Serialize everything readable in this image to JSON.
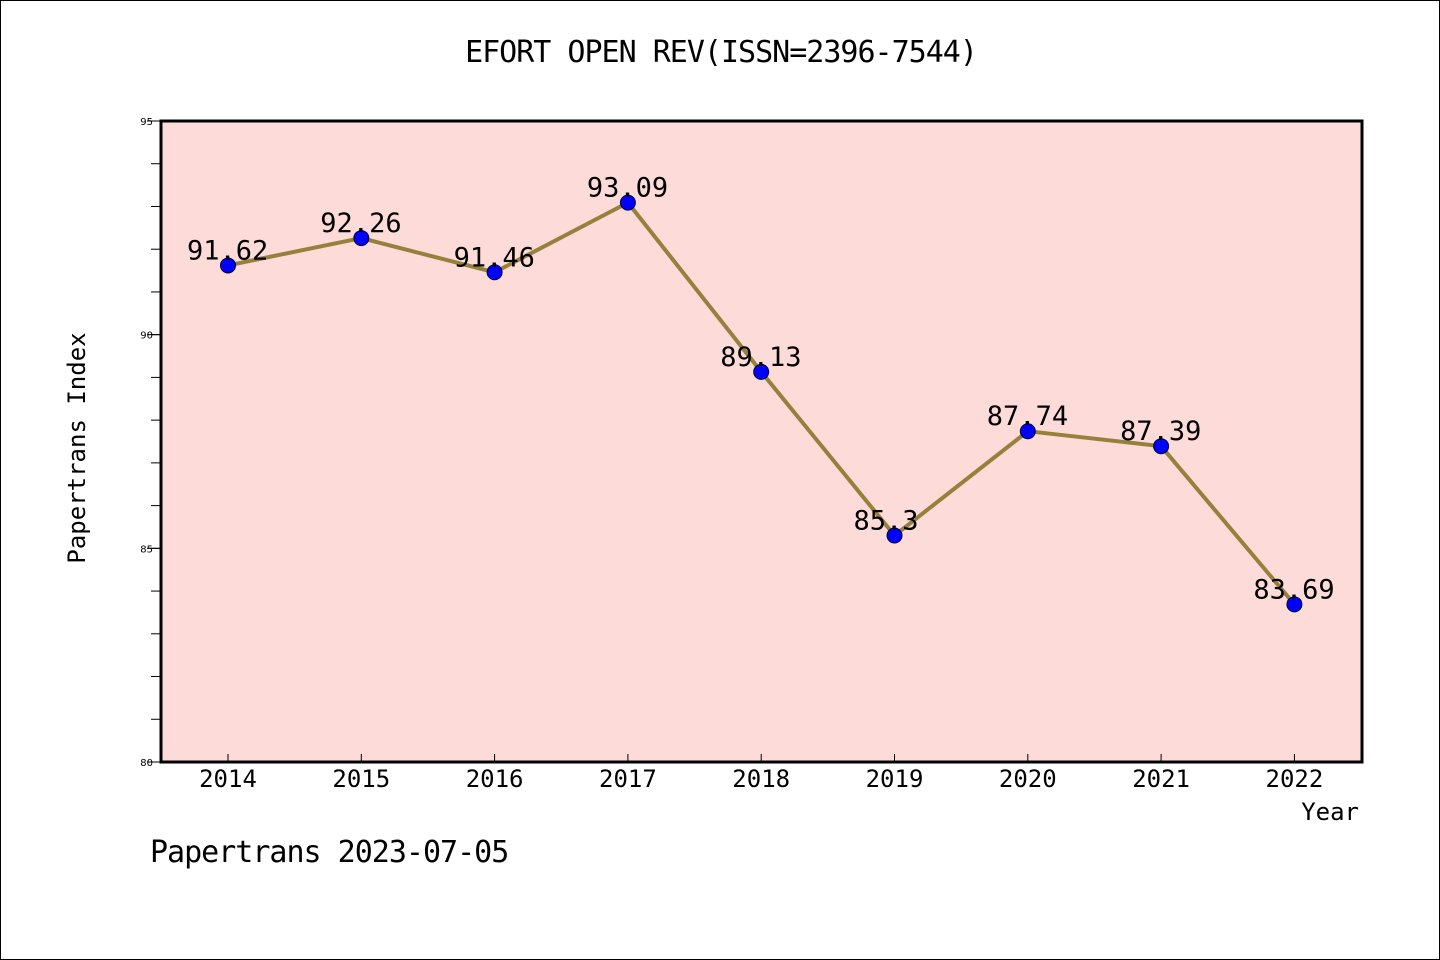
{
  "title": "EFORT OPEN REV(ISSN=2396-7544)",
  "footer": "Papertrans 2023-07-05",
  "chart_data": {
    "type": "line",
    "title": "EFORT OPEN REV(ISSN=2396-7544)",
    "xlabel": "Year",
    "ylabel": "Papertrans Index",
    "categories": [
      "2014",
      "2015",
      "2016",
      "2017",
      "2018",
      "2019",
      "2020",
      "2021",
      "2022"
    ],
    "values": [
      91.62,
      92.26,
      91.46,
      93.09,
      89.13,
      85.3,
      87.74,
      87.39,
      83.69
    ],
    "data_labels": [
      "91.62",
      "92.26",
      "91.46",
      "93.09",
      "89.13",
      "85.3",
      "87.74",
      "87.39",
      "83.69"
    ],
    "ylim": [
      80,
      95
    ],
    "yticks": [
      80,
      85,
      90,
      95
    ],
    "ytick_labels": [
      "80",
      "85",
      "90",
      "95"
    ],
    "grid": false,
    "colors": {
      "plot_background": "#fddbd8",
      "line": "#96803c",
      "marker": "#0000ff"
    }
  }
}
